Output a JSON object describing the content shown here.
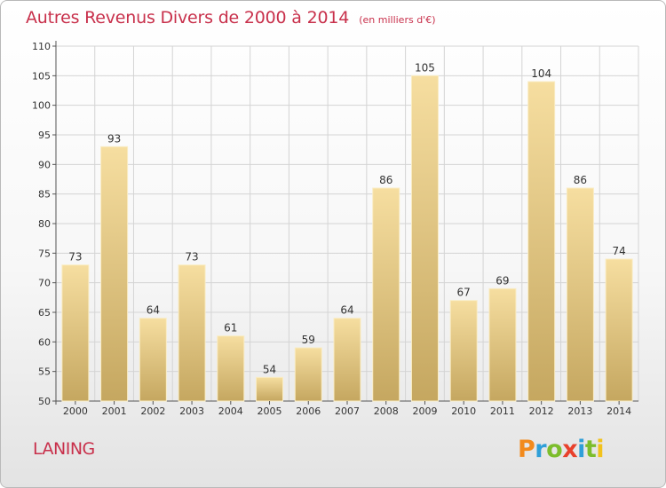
{
  "header": {
    "title": "Autres Revenus Divers de 2000 à 2014",
    "subtitle": "(en milliers d'€)"
  },
  "footer": {
    "place": "LANING",
    "logo_text": "Proxiti",
    "logo_colors": [
      "#f28a1c",
      "#2f9fd8",
      "#7cbd2b",
      "#e8412c",
      "#2f9fd8",
      "#7cbd2b",
      "#f2c21c"
    ]
  },
  "chart_data": {
    "type": "bar",
    "title": "Autres Revenus Divers de 2000 à 2014",
    "subtitle": "(en milliers d'€)",
    "xlabel": "",
    "ylabel": "",
    "categories": [
      "2000",
      "2001",
      "2002",
      "2003",
      "2004",
      "2005",
      "2006",
      "2007",
      "2008",
      "2009",
      "2010",
      "2011",
      "2012",
      "2013",
      "2014"
    ],
    "values": [
      73,
      93,
      64,
      73,
      61,
      54,
      59,
      64,
      86,
      105,
      67,
      69,
      104,
      86,
      74
    ],
    "ylim": [
      50,
      110
    ],
    "yticks": [
      50,
      55,
      60,
      65,
      70,
      75,
      80,
      85,
      90,
      95,
      100,
      105,
      110
    ],
    "grid": true,
    "legend": "none",
    "colors": {
      "bar_top": "#f6dea0",
      "bar_bottom": "#c5a760",
      "bar_edge": "#f9ecc4",
      "grid": "#d4d4d4",
      "axis": "#555555",
      "text": "#333333",
      "accent": "#c8304b"
    }
  }
}
